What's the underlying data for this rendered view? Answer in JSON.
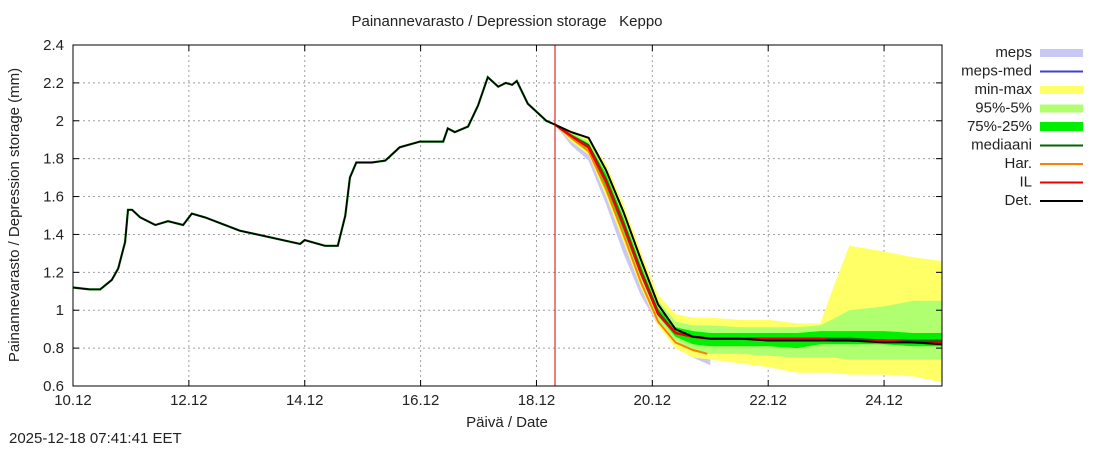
{
  "chart_data": {
    "type": "line",
    "title": "Painannevarasto / Depression storage   Keppo",
    "xlabel": "Päivä / Date",
    "ylabel": "Painannevarasto / Depression storage (mm)",
    "ylim": [
      0.6,
      2.4
    ],
    "xlim_days": [
      0,
      15
    ],
    "grid": true,
    "legend_position": "right",
    "x_tick_labels": [
      "10.12",
      "12.12",
      "14.12",
      "16.12",
      "18.12",
      "20.12",
      "22.12",
      "24.12"
    ],
    "x_tick_days": [
      0,
      2,
      4,
      6,
      8,
      10,
      12,
      14
    ],
    "y_tick_labels": [
      "0.6",
      "0.8",
      "1",
      "1.2",
      "1.4",
      "1.6",
      "1.8",
      "2",
      "2.2",
      "2.4"
    ],
    "y_tick_values": [
      0.6,
      0.8,
      1.0,
      1.2,
      1.4,
      1.6,
      1.8,
      2.0,
      2.2,
      2.4
    ],
    "now_day": 8.32,
    "colors": {
      "meps": "#c8c8f5",
      "meps_med": "#4040d0",
      "minmax": "#ffff66",
      "p95_5": "#b0ff70",
      "p75_25": "#00ee00",
      "mediaani": "#006400",
      "har": "#ff8000",
      "il": "#ee0000",
      "det": "#000000",
      "now_line": "#dd0000",
      "grid": "#a0a0a0"
    },
    "legend": [
      {
        "key": "meps",
        "label": "meps",
        "kind": "band"
      },
      {
        "key": "meps_med",
        "label": "meps-med",
        "kind": "line"
      },
      {
        "key": "minmax",
        "label": "min-max",
        "kind": "band"
      },
      {
        "key": "p95_5",
        "label": "95%-5%",
        "kind": "band"
      },
      {
        "key": "p75_25",
        "label": "75%-25%",
        "kind": "thickband"
      },
      {
        "key": "mediaani",
        "label": "mediaani",
        "kind": "line"
      },
      {
        "key": "har",
        "label": "Har.",
        "kind": "line"
      },
      {
        "key": "il",
        "label": "IL",
        "kind": "line"
      },
      {
        "key": "det",
        "label": "Det.",
        "kind": "line"
      }
    ],
    "history": {
      "x": [
        0,
        0.29,
        0.47,
        0.67,
        0.78,
        0.9,
        0.95,
        1.02,
        1.16,
        1.42,
        1.64,
        1.9,
        2.05,
        2.28,
        2.88,
        3.92,
        4.0,
        4.35,
        4.57,
        4.7,
        4.78,
        4.89,
        5.16,
        5.39,
        5.64,
        5.99,
        6.39,
        6.47,
        6.59,
        6.82,
        6.99,
        7.16,
        7.34,
        7.47,
        7.58,
        7.66,
        7.85,
        8.17,
        8.32
      ],
      "y": [
        1.12,
        1.11,
        1.11,
        1.16,
        1.22,
        1.36,
        1.53,
        1.53,
        1.49,
        1.45,
        1.47,
        1.45,
        1.51,
        1.49,
        1.42,
        1.35,
        1.37,
        1.34,
        1.34,
        1.5,
        1.7,
        1.78,
        1.78,
        1.79,
        1.86,
        1.89,
        1.89,
        1.96,
        1.94,
        1.97,
        2.08,
        2.23,
        2.18,
        2.2,
        2.19,
        2.21,
        2.09,
        2.0,
        1.98
      ]
    },
    "forecast_x": [
      8.32,
      8.6,
      8.9,
      9.2,
      9.5,
      9.8,
      10.1,
      10.4,
      10.7,
      11.0,
      11.5,
      12.0,
      12.5,
      12.9,
      13.1,
      13.4,
      14.0,
      14.5,
      15.0
    ],
    "bands": {
      "meps": {
        "x": [
          8.32,
          8.6,
          8.9,
          9.2,
          9.5,
          9.8,
          10.1,
          10.4,
          10.7,
          11.0
        ],
        "upper": [
          1.98,
          1.94,
          1.9,
          1.76,
          1.55,
          1.3,
          1.08,
          0.93,
          0.85,
          0.8
        ],
        "lower": [
          1.98,
          1.87,
          1.79,
          1.56,
          1.3,
          1.08,
          0.92,
          0.81,
          0.75,
          0.71
        ]
      },
      "minmax": {
        "upper": [
          1.98,
          1.95,
          1.91,
          1.77,
          1.56,
          1.31,
          1.08,
          0.98,
          0.96,
          0.96,
          0.95,
          0.95,
          0.93,
          0.93,
          1.1,
          1.34,
          1.31,
          1.28,
          1.26
        ],
        "lower": [
          1.98,
          1.89,
          1.82,
          1.6,
          1.36,
          1.12,
          0.92,
          0.8,
          0.75,
          0.74,
          0.72,
          0.7,
          0.67,
          0.67,
          0.67,
          0.66,
          0.66,
          0.65,
          0.62
        ]
      },
      "p95_5": {
        "upper": [
          1.98,
          1.94,
          1.89,
          1.75,
          1.53,
          1.28,
          1.05,
          0.94,
          0.92,
          0.92,
          0.91,
          0.91,
          0.91,
          0.92,
          0.95,
          1.0,
          1.02,
          1.05,
          1.05
        ],
        "lower": [
          1.98,
          1.9,
          1.83,
          1.62,
          1.39,
          1.15,
          0.95,
          0.84,
          0.79,
          0.77,
          0.77,
          0.76,
          0.75,
          0.75,
          0.75,
          0.74,
          0.74,
          0.74,
          0.74
        ]
      },
      "p75_25": {
        "upper": [
          1.98,
          1.93,
          1.88,
          1.72,
          1.49,
          1.24,
          1.01,
          0.91,
          0.89,
          0.88,
          0.88,
          0.88,
          0.88,
          0.89,
          0.89,
          0.89,
          0.89,
          0.88,
          0.88
        ],
        "lower": [
          1.98,
          1.91,
          1.85,
          1.65,
          1.42,
          1.18,
          0.97,
          0.86,
          0.82,
          0.81,
          0.81,
          0.81,
          0.8,
          0.82,
          0.82,
          0.82,
          0.82,
          0.81,
          0.81
        ]
      }
    },
    "lines": {
      "mediaani": [
        1.98,
        1.92,
        1.87,
        1.69,
        1.46,
        1.21,
        0.99,
        0.88,
        0.86,
        0.85,
        0.85,
        0.85,
        0.85,
        0.85,
        0.85,
        0.85,
        0.84,
        0.84,
        0.84
      ],
      "il": [
        1.98,
        1.92,
        1.86,
        1.68,
        1.45,
        1.2,
        0.98,
        0.88,
        0.86,
        0.85,
        0.85,
        0.85,
        0.85,
        0.85,
        0.84,
        0.84,
        0.84,
        0.83,
        0.83
      ],
      "det": [
        1.98,
        1.94,
        1.91,
        1.74,
        1.52,
        1.27,
        1.03,
        0.9,
        0.86,
        0.85,
        0.85,
        0.84,
        0.84,
        0.84,
        0.84,
        0.84,
        0.83,
        0.83,
        0.82
      ],
      "har": {
        "x": [
          8.32,
          8.6,
          8.9,
          9.2,
          9.5,
          9.8,
          10.1,
          10.4,
          10.7,
          10.95
        ],
        "y": [
          1.98,
          1.91,
          1.84,
          1.64,
          1.4,
          1.15,
          0.94,
          0.83,
          0.79,
          0.77
        ]
      }
    },
    "timestamp": "2025-12-18 07:41:41 EET"
  }
}
